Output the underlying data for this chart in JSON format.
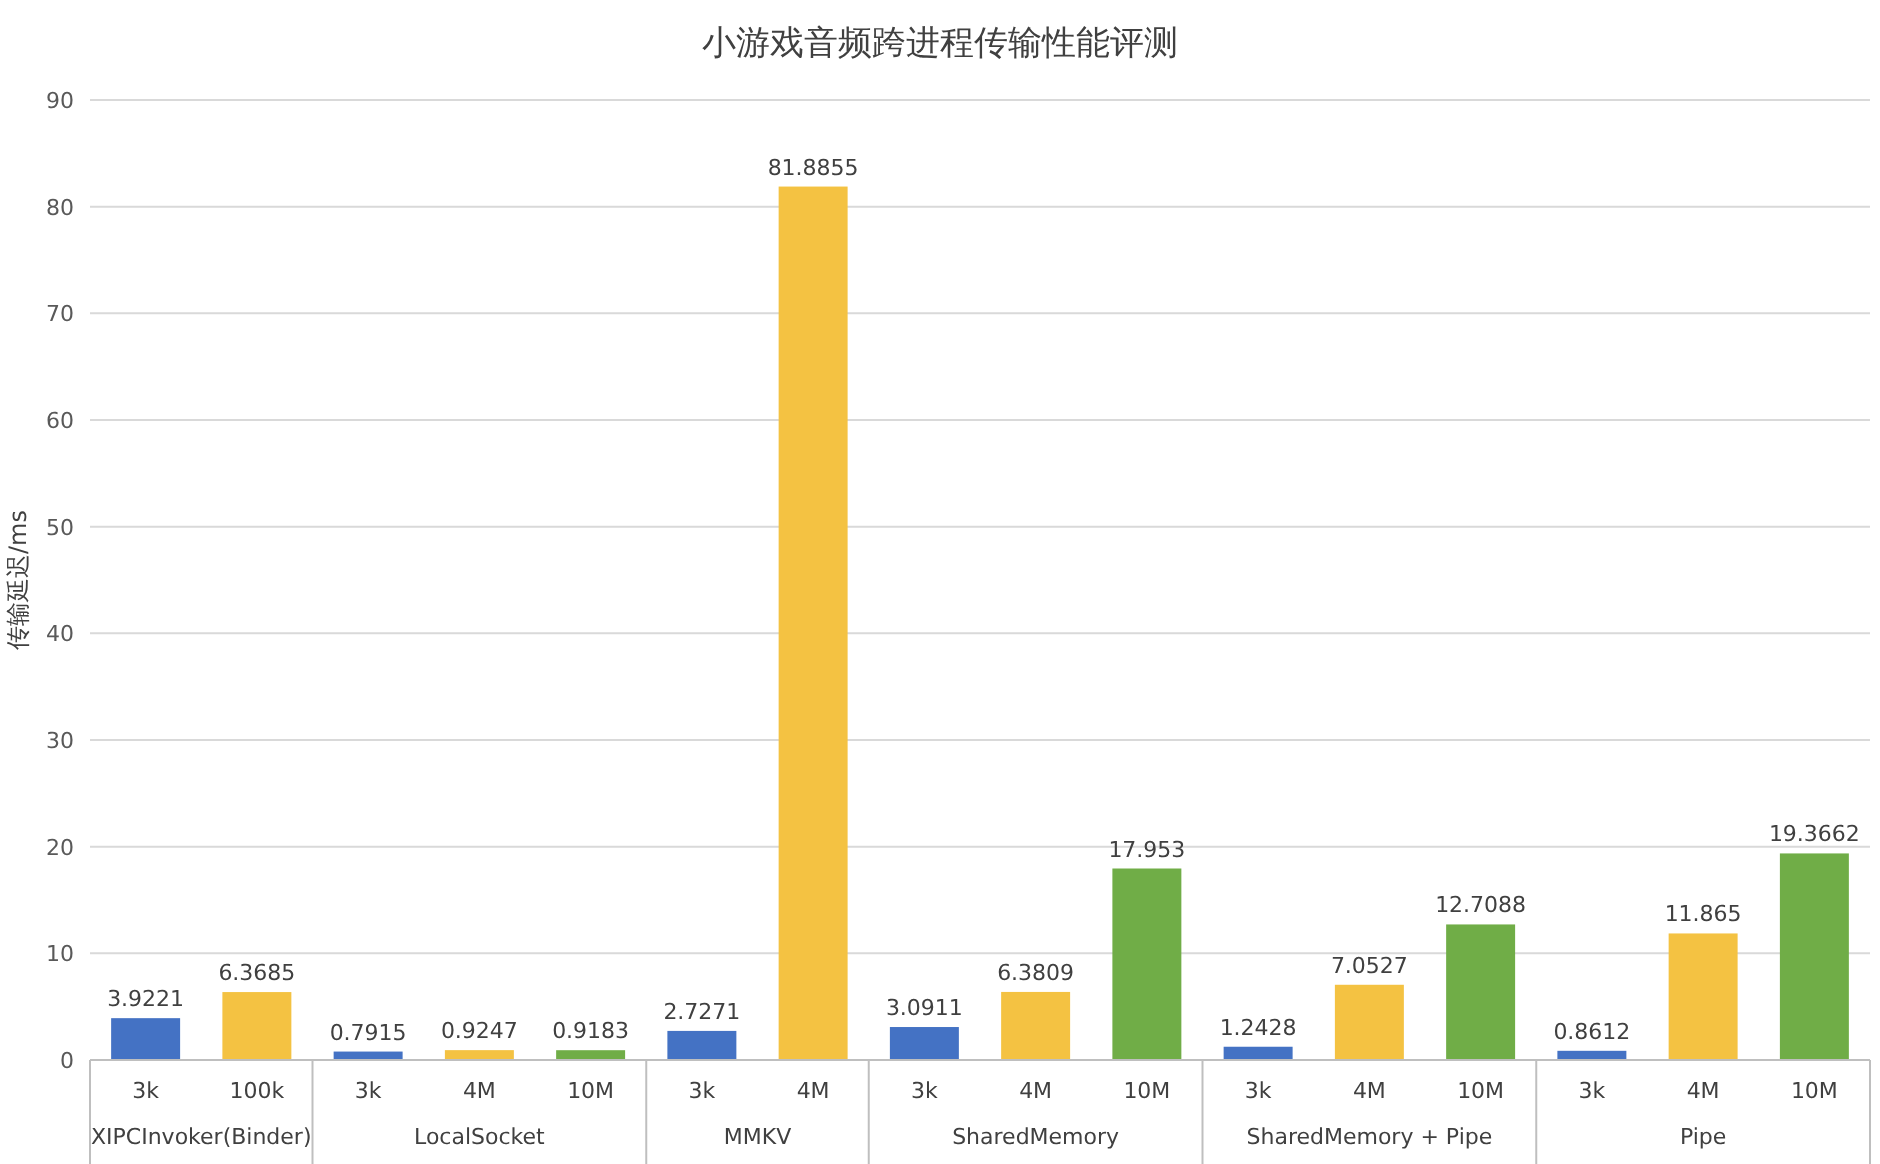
{
  "chart_data": {
    "type": "bar",
    "title": "小游戏音频跨进程传输性能评测",
    "ylabel": "传输延迟/ms",
    "categories": [
      "3k",
      "100k",
      "3k",
      "4M",
      "10M",
      "3k",
      "4M",
      "3k",
      "4M",
      "10M",
      "3k",
      "4M",
      "10M",
      "3k",
      "4M",
      "10M"
    ],
    "series": [
      {
        "color": "#4472c4",
        "values": [
          3.9221,
          null,
          0.7915,
          null,
          null,
          2.7271,
          null,
          3.0911,
          null,
          null,
          1.2428,
          null,
          null,
          0.8612,
          null,
          null
        ]
      },
      {
        "color": "#f4c242",
        "values": [
          null,
          6.3685,
          null,
          0.9247,
          null,
          null,
          81.8855,
          null,
          6.3809,
          null,
          null,
          7.0527,
          null,
          null,
          11.865,
          null
        ]
      },
      {
        "color": "#70ad47",
        "values": [
          null,
          null,
          null,
          null,
          0.9183,
          null,
          null,
          null,
          null,
          17.953,
          null,
          null,
          12.7088,
          null,
          null,
          19.3662
        ]
      }
    ],
    "annotations": [
      "XIPCInvoker(Binder)",
      "LocalSocket",
      "MMKV",
      "SharedMemory",
      "SharedMemory + Pipe",
      "Pipe"
    ],
    "ylim": [
      0,
      90
    ],
    "yticks": [
      0,
      10,
      20,
      30,
      40,
      50,
      60,
      70,
      80,
      90
    ],
    "grid": "y",
    "data_labels": true
  }
}
